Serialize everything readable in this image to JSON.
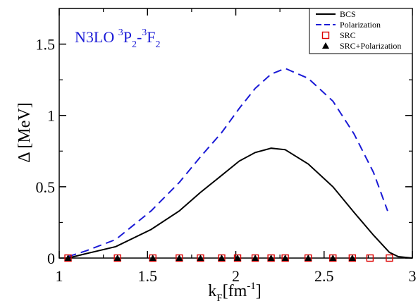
{
  "chart_data": {
    "type": "line",
    "title": "",
    "annotation": {
      "prefix": "N3LO ",
      "sup1": "3",
      "part1": "P",
      "sub1": "2",
      "dash": "-",
      "sup2": "3",
      "part2": "F",
      "sub2": "2"
    },
    "xlabel": {
      "main": "k",
      "sub": "F",
      "unit": "[fm",
      "sup": "-1",
      "close": "]"
    },
    "ylabel": "Δ [MeV]",
    "xlim": [
      1,
      3
    ],
    "ylim": [
      0,
      1.75
    ],
    "xticks": [
      {
        "value": 1,
        "label": "1"
      },
      {
        "value": 1.5,
        "label": "1.5"
      },
      {
        "value": 2,
        "label": "2"
      },
      {
        "value": 2.5,
        "label": "2.5"
      },
      {
        "value": 3,
        "label": "3"
      }
    ],
    "yticks": [
      {
        "value": 0,
        "label": "0"
      },
      {
        "value": 0.5,
        "label": "0.5"
      },
      {
        "value": 1,
        "label": "1"
      },
      {
        "value": 1.5,
        "label": "1.5"
      }
    ],
    "legend_position": "top-right",
    "series": [
      {
        "name": "BCS",
        "style": "solid-line",
        "color": "#000000",
        "x": [
          1.05,
          1.15,
          1.32,
          1.52,
          1.68,
          1.8,
          1.92,
          2.02,
          2.11,
          2.2,
          2.28,
          2.41,
          2.55,
          2.67,
          2.78,
          2.87,
          2.92,
          3.0
        ],
        "y": [
          0.0,
          0.03,
          0.08,
          0.2,
          0.33,
          0.46,
          0.58,
          0.68,
          0.74,
          0.77,
          0.76,
          0.66,
          0.5,
          0.32,
          0.16,
          0.04,
          0.01,
          0.0
        ]
      },
      {
        "name": "Polarization",
        "style": "dashed-line",
        "color": "#1a1ad6",
        "x": [
          1.05,
          1.15,
          1.32,
          1.52,
          1.68,
          1.8,
          1.92,
          2.02,
          2.11,
          2.2,
          2.28,
          2.41,
          2.55,
          2.67,
          2.78,
          2.86
        ],
        "y": [
          0.01,
          0.05,
          0.13,
          0.33,
          0.53,
          0.71,
          0.88,
          1.05,
          1.19,
          1.29,
          1.33,
          1.26,
          1.1,
          0.87,
          0.6,
          0.33
        ]
      },
      {
        "name": "SRC",
        "style": "open-square",
        "color": "#dd0000",
        "x": [
          1.05,
          1.33,
          1.53,
          1.68,
          1.8,
          1.92,
          2.01,
          2.11,
          2.2,
          2.28,
          2.41,
          2.55,
          2.66,
          2.76,
          2.87
        ],
        "y": [
          0,
          0,
          0,
          0,
          0,
          0,
          0,
          0,
          0,
          0,
          0,
          0,
          0,
          0,
          0
        ]
      },
      {
        "name": "SRC+Polarization",
        "style": "filled-triangle",
        "color": "#000000",
        "x": [
          1.05,
          1.33,
          1.53,
          1.68,
          1.8,
          1.92,
          2.01,
          2.11,
          2.2,
          2.28,
          2.41,
          2.55,
          2.66
        ],
        "y": [
          0,
          0,
          0,
          0,
          0,
          0,
          0,
          0,
          0,
          0,
          0,
          0,
          0
        ]
      }
    ]
  }
}
